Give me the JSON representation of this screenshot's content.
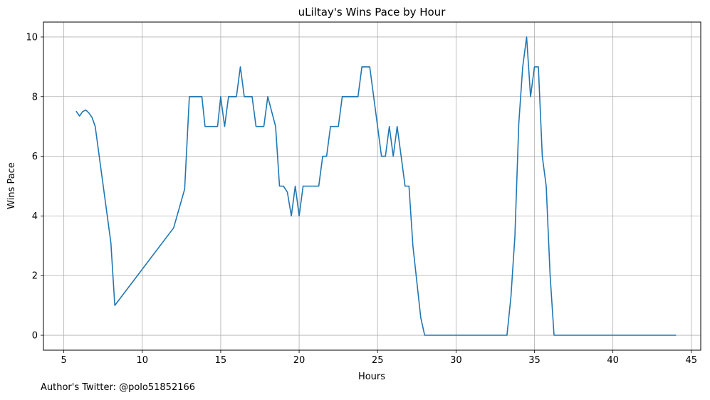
{
  "chart_data": {
    "type": "line",
    "title": "uLiltay's Wins Pace by Hour",
    "xlabel": "Hours",
    "ylabel": "Wins Pace",
    "xlim": [
      3.7,
      45.6
    ],
    "ylim": [
      -0.5,
      10.5
    ],
    "xticks": [
      5,
      10,
      15,
      20,
      25,
      30,
      35,
      40,
      45
    ],
    "yticks": [
      0,
      2,
      4,
      6,
      8,
      10
    ],
    "grid": true,
    "colors": {
      "line": "#1f77b4",
      "grid": "#b0b0b0"
    },
    "series": [
      {
        "x": [
          5.8,
          6.0,
          6.2,
          6.4,
          6.6,
          6.8,
          7.0,
          8.0,
          8.25,
          12.0,
          12.7,
          13.0,
          13.2,
          13.5,
          13.8,
          14.0,
          14.5,
          14.8,
          15.0,
          15.25,
          15.5,
          15.75,
          16.0,
          16.25,
          16.5,
          16.75,
          17.0,
          17.25,
          17.5,
          17.75,
          18.0,
          18.5,
          18.75,
          19.0,
          19.25,
          19.5,
          19.75,
          20.0,
          20.25,
          20.5,
          20.75,
          21.0,
          21.25,
          21.5,
          21.75,
          22.0,
          22.25,
          22.5,
          22.75,
          23.0,
          23.25,
          23.5,
          23.75,
          24.0,
          24.25,
          24.5,
          24.75,
          25.0,
          25.25,
          25.5,
          25.75,
          26.0,
          26.25,
          26.5,
          26.75,
          27.0,
          27.25,
          27.75,
          28.0,
          33.25,
          33.5,
          33.75,
          34.0,
          34.25,
          34.5,
          34.75,
          35.0,
          35.25,
          35.5,
          35.75,
          36.0,
          36.25,
          44.0
        ],
        "y": [
          7.5,
          7.35,
          7.5,
          7.55,
          7.45,
          7.3,
          7.0,
          3.1,
          1.0,
          3.6,
          4.9,
          8.0,
          8.0,
          8.0,
          8.0,
          7.0,
          7.0,
          7.0,
          8.0,
          7.0,
          8.0,
          8.0,
          8.0,
          9.0,
          8.0,
          8.0,
          8.0,
          7.0,
          7.0,
          7.0,
          8.0,
          7.0,
          5.0,
          5.0,
          4.8,
          4.0,
          5.0,
          4.0,
          5.0,
          5.0,
          5.0,
          5.0,
          5.0,
          6.0,
          6.0,
          7.0,
          7.0,
          7.0,
          8.0,
          8.0,
          8.0,
          8.0,
          8.0,
          9.0,
          9.0,
          9.0,
          8.0,
          7.0,
          6.0,
          6.0,
          7.0,
          6.0,
          7.0,
          6.0,
          5.0,
          5.0,
          3.0,
          0.6,
          0.0,
          0.0,
          1.3,
          3.3,
          7.1,
          9.0,
          10.0,
          8.0,
          9.0,
          9.0,
          6.0,
          5.0,
          2.0,
          0.0,
          0.0
        ]
      }
    ]
  },
  "footer": {
    "credit": "Author's Twitter: @polo51852166"
  }
}
